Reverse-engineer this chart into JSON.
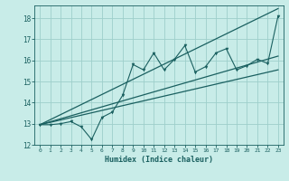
{
  "xlabel": "Humidex (Indice chaleur)",
  "bg_color": "#c8ece8",
  "grid_color": "#9dcfcb",
  "line_color": "#1a6060",
  "xlim": [
    -0.5,
    23.5
  ],
  "ylim": [
    12,
    18.6
  ],
  "yticks": [
    12,
    13,
    14,
    15,
    16,
    17,
    18
  ],
  "xticks": [
    0,
    1,
    2,
    3,
    4,
    5,
    6,
    7,
    8,
    9,
    10,
    11,
    12,
    13,
    14,
    15,
    16,
    17,
    18,
    19,
    20,
    21,
    22,
    23
  ],
  "zigzag_x": [
    0,
    1,
    2,
    3,
    4,
    5,
    6,
    7,
    8,
    9,
    10,
    11,
    12,
    13,
    14,
    15,
    16,
    17,
    18,
    19,
    20,
    21,
    22,
    23
  ],
  "zigzag_y": [
    12.95,
    12.95,
    13.0,
    13.1,
    12.85,
    12.25,
    13.3,
    13.55,
    14.35,
    15.8,
    15.55,
    16.35,
    15.55,
    16.05,
    16.7,
    15.45,
    15.7,
    16.35,
    16.55,
    15.55,
    15.75,
    16.05,
    15.85,
    18.1
  ],
  "line1_x": [
    0,
    23
  ],
  "line1_y": [
    12.95,
    18.45
  ],
  "line2_x": [
    0,
    23
  ],
  "line2_y": [
    12.95,
    16.2
  ],
  "line3_x": [
    0,
    23
  ],
  "line3_y": [
    12.95,
    15.55
  ]
}
